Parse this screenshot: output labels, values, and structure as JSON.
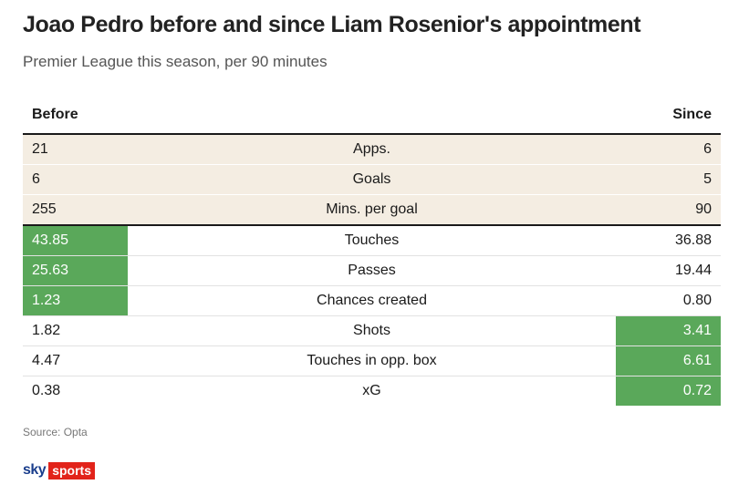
{
  "header": {
    "title": "Joao Pedro before and since Liam Rosenior's appointment",
    "subtitle": "Premier League this season, per 90 minutes"
  },
  "colors": {
    "highlight": "#5aa85a",
    "beige_row": "#f4ede2",
    "sky_blue": "#1a3e8c",
    "sky_red": "#e2231a"
  },
  "chart_data": {
    "type": "table",
    "columns": [
      "Before",
      "",
      "Since"
    ],
    "rows": [
      {
        "before": "21",
        "metric": "Apps.",
        "since": "6",
        "highlight": "none"
      },
      {
        "before": "6",
        "metric": "Goals",
        "since": "5",
        "highlight": "none"
      },
      {
        "before": "255",
        "metric": "Mins. per goal",
        "since": "90",
        "highlight": "none"
      },
      {
        "before": "43.85",
        "metric": "Touches",
        "since": "36.88",
        "highlight": "before"
      },
      {
        "before": "25.63",
        "metric": "Passes",
        "since": "19.44",
        "highlight": "before"
      },
      {
        "before": "1.23",
        "metric": "Chances created",
        "since": "0.80",
        "highlight": "before"
      },
      {
        "before": "1.82",
        "metric": "Shots",
        "since": "3.41",
        "highlight": "since"
      },
      {
        "before": "4.47",
        "metric": "Touches in opp. box",
        "since": "6.61",
        "highlight": "since"
      },
      {
        "before": "0.38",
        "metric": "xG",
        "since": "0.72",
        "highlight": "since"
      }
    ]
  },
  "footer": {
    "source": "Source: Opta",
    "logo_sky": "sky",
    "logo_sports": "sports"
  }
}
